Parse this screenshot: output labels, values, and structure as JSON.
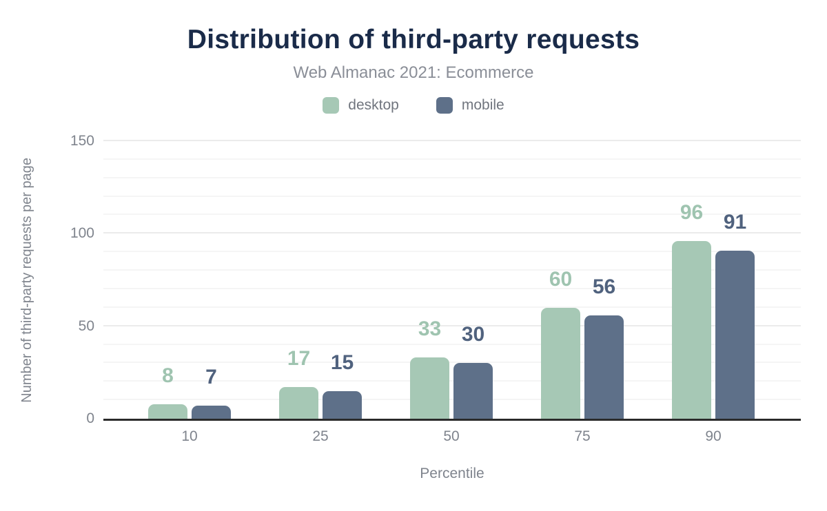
{
  "title": "Distribution of third-party requests",
  "subtitle": "Web Almanac 2021: Ecommerce",
  "legend": {
    "items": [
      {
        "label": "desktop"
      },
      {
        "label": "mobile"
      }
    ]
  },
  "chart_data": {
    "type": "bar",
    "title": "Distribution of third-party requests",
    "subtitle": "Web Almanac 2021: Ecommerce",
    "categories": [
      "10",
      "25",
      "50",
      "75",
      "90"
    ],
    "series": [
      {
        "name": "desktop",
        "color": "#a6c8b5",
        "label_color": "#9fc4b0",
        "values": [
          8,
          17,
          33,
          60,
          96
        ]
      },
      {
        "name": "mobile",
        "color": "#5e7089",
        "label_color": "#50627e",
        "values": [
          7,
          15,
          30,
          56,
          91
        ]
      }
    ],
    "xlabel": "Percentile",
    "ylabel": "Number of third-party requests per page",
    "ylim": [
      0,
      150
    ],
    "yticks": [
      0,
      50,
      100,
      150
    ],
    "grid": {
      "on": true,
      "minor_step": 10,
      "major_step": 50
    },
    "legend_position": "top"
  },
  "colors": {
    "background": "#ffffff",
    "title": "#1a2b49",
    "subtitle": "#8a8e97",
    "axis_text": "#7f848d",
    "legend_text": "#70757e",
    "axis_line": "#2b2b2b",
    "grid_minor": "#f5f5f5",
    "grid_major": "#ebebeb"
  }
}
